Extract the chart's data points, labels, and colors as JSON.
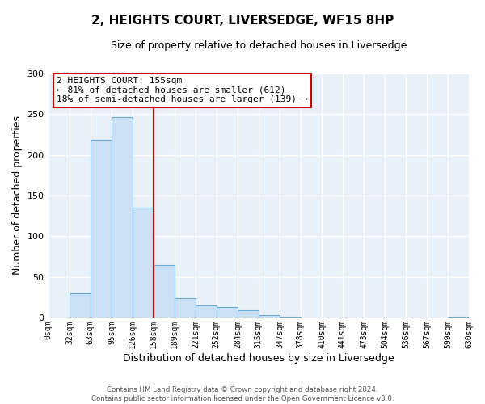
{
  "title": "2, HEIGHTS COURT, LIVERSEDGE, WF15 8HP",
  "subtitle": "Size of property relative to detached houses in Liversedge",
  "xlabel": "Distribution of detached houses by size in Liversedge",
  "ylabel": "Number of detached properties",
  "bin_edges": [
    0,
    32,
    63,
    95,
    126,
    158,
    189,
    221,
    252,
    284,
    315,
    347,
    378,
    410,
    441,
    473,
    504,
    536,
    567,
    599,
    630
  ],
  "bin_labels": [
    "0sqm",
    "32sqm",
    "63sqm",
    "95sqm",
    "126sqm",
    "158sqm",
    "189sqm",
    "221sqm",
    "252sqm",
    "284sqm",
    "315sqm",
    "347sqm",
    "378sqm",
    "410sqm",
    "441sqm",
    "473sqm",
    "504sqm",
    "536sqm",
    "567sqm",
    "599sqm",
    "630sqm"
  ],
  "bar_heights": [
    0,
    30,
    218,
    246,
    135,
    65,
    24,
    15,
    13,
    9,
    3,
    1,
    0,
    0,
    0,
    0,
    0,
    0,
    0,
    1
  ],
  "bar_color": "#cce0f5",
  "bar_edgecolor": "#6aaad4",
  "vline_x": 158,
  "vline_color": "#cc0000",
  "ylim": [
    0,
    300
  ],
  "yticks": [
    0,
    50,
    100,
    150,
    200,
    250,
    300
  ],
  "annotation_line1": "2 HEIGHTS COURT: 155sqm",
  "annotation_line2": "← 81% of detached houses are smaller (612)",
  "annotation_line3": "18% of semi-detached houses are larger (139) →",
  "annotation_box_color": "#cc0000",
  "footer_line1": "Contains HM Land Registry data © Crown copyright and database right 2024.",
  "footer_line2": "Contains public sector information licensed under the Open Government Licence v3.0.",
  "plot_bg_color": "#e8f0f8",
  "fig_bg_color": "#ffffff",
  "grid_color": "#ffffff"
}
